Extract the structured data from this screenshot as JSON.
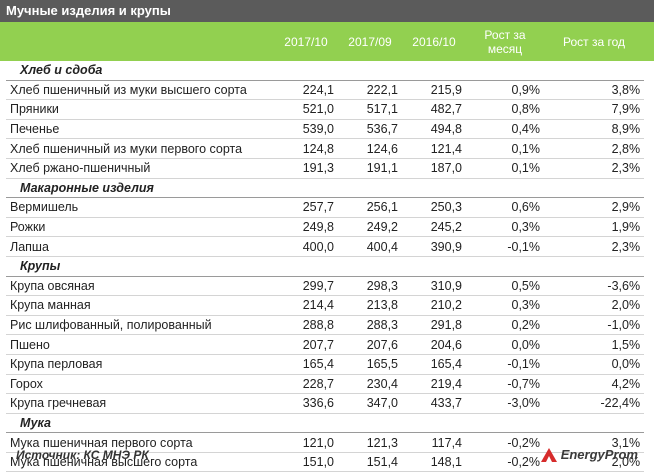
{
  "title": "Мучные изделия и крупы",
  "columns": {
    "c1": "2017/10",
    "c2": "2017/09",
    "c3": "2016/10",
    "c4_line1": "Рост за",
    "c4_line2": "месяц",
    "c5": "Рост за год"
  },
  "rows": [
    {
      "type": "cat",
      "name": "Хлеб и сдоба"
    },
    {
      "type": "row",
      "name": "Хлеб пшеничный из муки высшего сорта",
      "v1": "224,1",
      "v2": "222,1",
      "v3": "215,9",
      "m": "0,9%",
      "y": "3,8%"
    },
    {
      "type": "row",
      "name": "Пряники",
      "v1": "521,0",
      "v2": "517,1",
      "v3": "482,7",
      "m": "0,8%",
      "y": "7,9%"
    },
    {
      "type": "row",
      "name": "Печенье",
      "v1": "539,0",
      "v2": "536,7",
      "v3": "494,8",
      "m": "0,4%",
      "y": "8,9%"
    },
    {
      "type": "row",
      "name": "Хлеб пшеничный из муки первого сорта",
      "v1": "124,8",
      "v2": "124,6",
      "v3": "121,4",
      "m": "0,1%",
      "y": "2,8%"
    },
    {
      "type": "row",
      "name": "Хлеб ржано-пшеничный",
      "v1": "191,3",
      "v2": "191,1",
      "v3": "187,0",
      "m": "0,1%",
      "y": "2,3%"
    },
    {
      "type": "cat",
      "name": "Макаронные изделия"
    },
    {
      "type": "row",
      "name": "Вермишель",
      "v1": "257,7",
      "v2": "256,1",
      "v3": "250,3",
      "m": "0,6%",
      "y": "2,9%"
    },
    {
      "type": "row",
      "name": "Рожки",
      "v1": "249,8",
      "v2": "249,2",
      "v3": "245,2",
      "m": "0,3%",
      "y": "1,9%"
    },
    {
      "type": "row",
      "name": "Лапша",
      "v1": "400,0",
      "v2": "400,4",
      "v3": "390,9",
      "m": "-0,1%",
      "y": "2,3%"
    },
    {
      "type": "cat",
      "name": "Крупы"
    },
    {
      "type": "row",
      "name": "Крупа овсяная",
      "v1": "299,7",
      "v2": "298,3",
      "v3": "310,9",
      "m": "0,5%",
      "y": "-3,6%"
    },
    {
      "type": "row",
      "name": "Крупа манная",
      "v1": "214,4",
      "v2": "213,8",
      "v3": "210,2",
      "m": "0,3%",
      "y": "2,0%"
    },
    {
      "type": "row",
      "name": "Рис шлифованный, полированный",
      "v1": "288,8",
      "v2": "288,3",
      "v3": "291,8",
      "m": "0,2%",
      "y": "-1,0%"
    },
    {
      "type": "row",
      "name": "Пшено",
      "v1": "207,7",
      "v2": "207,6",
      "v3": "204,6",
      "m": "0,0%",
      "y": "1,5%"
    },
    {
      "type": "row",
      "name": "Крупа перловая",
      "v1": "165,4",
      "v2": "165,5",
      "v3": "165,4",
      "m": "-0,1%",
      "y": "0,0%"
    },
    {
      "type": "row",
      "name": "Горох",
      "v1": "228,7",
      "v2": "230,4",
      "v3": "219,4",
      "m": "-0,7%",
      "y": "4,2%"
    },
    {
      "type": "row",
      "name": "Крупа гречневая",
      "v1": "336,6",
      "v2": "347,0",
      "v3": "433,7",
      "m": "-3,0%",
      "y": "-22,4%"
    },
    {
      "type": "cat",
      "name": "Мука"
    },
    {
      "type": "row",
      "name": "Мука пшеничная первого сорта",
      "v1": "121,0",
      "v2": "121,3",
      "v3": "117,4",
      "m": "-0,2%",
      "y": "3,1%"
    },
    {
      "type": "row",
      "name": "Мука пшеничная высшего сорта",
      "v1": "151,0",
      "v2": "151,4",
      "v3": "148,1",
      "m": "-0,2%",
      "y": "2,0%"
    }
  ],
  "footer": {
    "source": "Источник: КС МНЭ РК",
    "logo_text": "EnergyProm",
    "logo_icon": "energyprom-logo-icon"
  },
  "colors": {
    "title_bar": "#5b5b5b",
    "header": "#92d050",
    "logo_red": "#d62b2b"
  }
}
